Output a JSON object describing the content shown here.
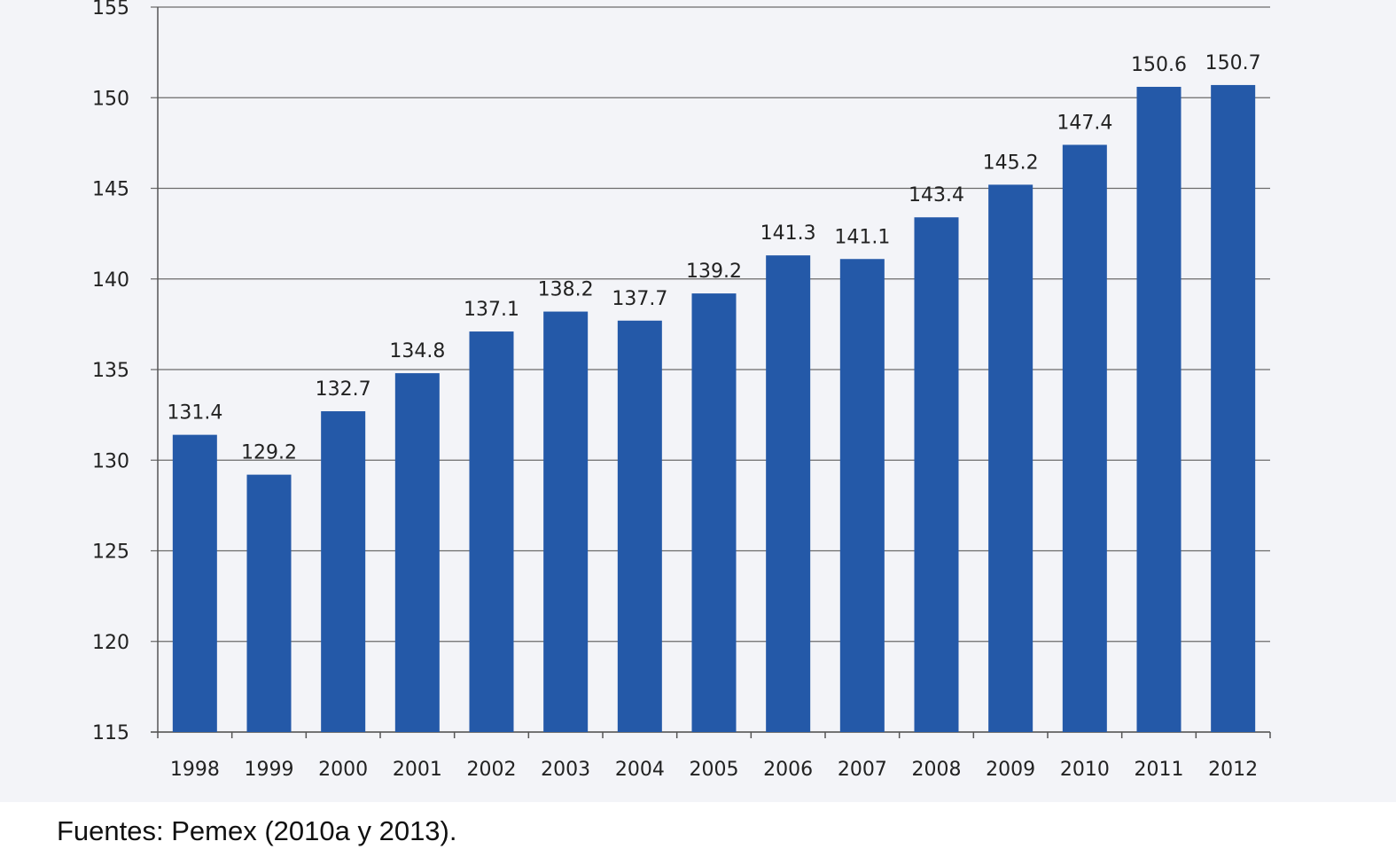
{
  "chart_data": {
    "type": "bar",
    "title": "",
    "xlabel": "",
    "ylabel": "",
    "categories": [
      "1998",
      "1999",
      "2000",
      "2001",
      "2002",
      "2003",
      "2004",
      "2005",
      "2006",
      "2007",
      "2008",
      "2009",
      "2010",
      "2011",
      "2012"
    ],
    "values": [
      131.4,
      129.2,
      132.7,
      134.8,
      137.1,
      138.2,
      137.7,
      139.2,
      141.3,
      141.1,
      143.4,
      145.2,
      147.4,
      150.6,
      150.7
    ],
    "ylim": [
      115,
      155
    ],
    "yticks": [
      115,
      120,
      125,
      130,
      135,
      140,
      145,
      150,
      155
    ],
    "grid": true,
    "bar_color": "#2459a8"
  },
  "footer": {
    "source": "Fuentes: Pemex (2010a y 2013)."
  }
}
